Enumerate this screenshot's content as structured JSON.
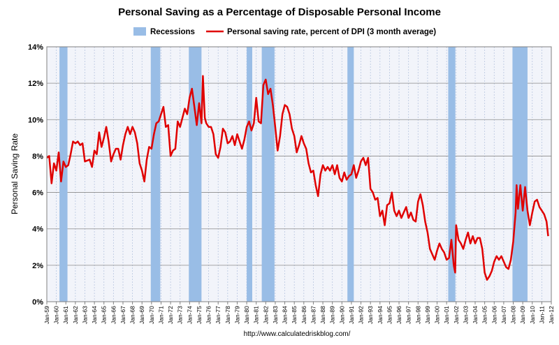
{
  "chart_data": {
    "type": "line",
    "title": "Personal Saving as a Percentage of Disposable Personal Income",
    "ylabel": "Personal Saving Rate",
    "xlabel": "",
    "footer": "http://www.calculatedriskblog.com/",
    "ylim": [
      0,
      14
    ],
    "xlim": [
      1959.0,
      2012.0
    ],
    "grid": true,
    "legend_position": "top",
    "y_ticks": [
      "0%",
      "2%",
      "4%",
      "6%",
      "8%",
      "10%",
      "12%",
      "14%"
    ],
    "x_ticks": [
      "Jan-59",
      "Jan-60",
      "Jan-61",
      "Jan-62",
      "Jan-63",
      "Jan-64",
      "Jan-65",
      "Jan-66",
      "Jan-67",
      "Jan-68",
      "Jan-69",
      "Jan-70",
      "Jan-71",
      "Jan-72",
      "Jan-73",
      "Jan-74",
      "Jan-75",
      "Jan-76",
      "Jan-77",
      "Jan-78",
      "Jan-79",
      "Jan-80",
      "Jan-81",
      "Jan-82",
      "Jan-83",
      "Jan-84",
      "Jan-85",
      "Jan-86",
      "Jan-87",
      "Jan-88",
      "Jan-89",
      "Jan-90",
      "Jan-91",
      "Jan-92",
      "Jan-93",
      "Jan-94",
      "Jan-95",
      "Jan-96",
      "Jan-97",
      "Jan-98",
      "Jan-99",
      "Jan-00",
      "Jan-01",
      "Jan-02",
      "Jan-03",
      "Jan-04",
      "Jan-05",
      "Jan-06",
      "Jan-07",
      "Jan-08",
      "Jan-09",
      "Jan-10",
      "Jan-11",
      "Jan-12"
    ],
    "recessions": {
      "name": "Recessions",
      "color": "#99bde6",
      "periods": [
        [
          1960.33,
          1961.17
        ],
        [
          1969.92,
          1970.92
        ],
        [
          1973.92,
          1975.25
        ],
        [
          1980.0,
          1980.58
        ],
        [
          1981.58,
          1982.92
        ],
        [
          1990.58,
          1991.25
        ],
        [
          2001.17,
          2001.92
        ],
        [
          2007.92,
          2009.5
        ]
      ]
    },
    "series": [
      {
        "name": "Personal saving rate, percent of DPI (3 month average)",
        "color": "#e00000",
        "points": [
          [
            1959.0,
            7.9
          ],
          [
            1959.25,
            8.0
          ],
          [
            1959.5,
            6.5
          ],
          [
            1959.75,
            7.6
          ],
          [
            1960.0,
            7.2
          ],
          [
            1960.25,
            8.2
          ],
          [
            1960.5,
            6.6
          ],
          [
            1960.75,
            7.7
          ],
          [
            1961.0,
            7.4
          ],
          [
            1961.25,
            7.5
          ],
          [
            1961.5,
            8.1
          ],
          [
            1961.75,
            8.8
          ],
          [
            1962.0,
            8.7
          ],
          [
            1962.25,
            8.8
          ],
          [
            1962.5,
            8.6
          ],
          [
            1962.75,
            8.7
          ],
          [
            1963.0,
            7.7
          ],
          [
            1963.5,
            7.8
          ],
          [
            1963.75,
            7.4
          ],
          [
            1964.0,
            8.3
          ],
          [
            1964.25,
            8.1
          ],
          [
            1964.5,
            9.3
          ],
          [
            1964.75,
            8.5
          ],
          [
            1965.0,
            9.0
          ],
          [
            1965.25,
            9.6
          ],
          [
            1965.5,
            8.8
          ],
          [
            1965.75,
            7.7
          ],
          [
            1966.0,
            8.1
          ],
          [
            1966.25,
            8.4
          ],
          [
            1966.5,
            8.4
          ],
          [
            1966.75,
            7.8
          ],
          [
            1967.0,
            8.6
          ],
          [
            1967.25,
            9.2
          ],
          [
            1967.5,
            9.6
          ],
          [
            1967.75,
            9.2
          ],
          [
            1968.0,
            9.6
          ],
          [
            1968.25,
            9.3
          ],
          [
            1968.5,
            8.7
          ],
          [
            1968.75,
            7.6
          ],
          [
            1969.0,
            7.2
          ],
          [
            1969.25,
            6.6
          ],
          [
            1969.5,
            7.8
          ],
          [
            1969.75,
            8.5
          ],
          [
            1970.0,
            8.4
          ],
          [
            1970.25,
            9.2
          ],
          [
            1970.5,
            9.8
          ],
          [
            1970.75,
            9.9
          ],
          [
            1971.0,
            10.3
          ],
          [
            1971.25,
            10.7
          ],
          [
            1971.5,
            9.6
          ],
          [
            1971.75,
            9.7
          ],
          [
            1972.0,
            8.0
          ],
          [
            1972.25,
            8.3
          ],
          [
            1972.5,
            8.4
          ],
          [
            1972.75,
            9.9
          ],
          [
            1973.0,
            9.6
          ],
          [
            1973.25,
            10.1
          ],
          [
            1973.5,
            10.6
          ],
          [
            1973.75,
            10.3
          ],
          [
            1974.0,
            11.2
          ],
          [
            1974.25,
            11.7
          ],
          [
            1974.5,
            10.7
          ],
          [
            1974.75,
            9.7
          ],
          [
            1975.0,
            10.9
          ],
          [
            1975.25,
            9.8
          ],
          [
            1975.4,
            12.4
          ],
          [
            1975.6,
            10.1
          ],
          [
            1975.75,
            9.8
          ],
          [
            1976.0,
            9.6
          ],
          [
            1976.25,
            9.6
          ],
          [
            1976.5,
            9.2
          ],
          [
            1976.75,
            8.1
          ],
          [
            1977.0,
            7.9
          ],
          [
            1977.25,
            8.5
          ],
          [
            1977.5,
            9.5
          ],
          [
            1977.75,
            9.3
          ],
          [
            1978.0,
            8.7
          ],
          [
            1978.25,
            8.8
          ],
          [
            1978.5,
            9.1
          ],
          [
            1978.75,
            8.6
          ],
          [
            1979.0,
            9.2
          ],
          [
            1979.25,
            8.8
          ],
          [
            1979.5,
            8.4
          ],
          [
            1979.75,
            8.9
          ],
          [
            1980.0,
            9.6
          ],
          [
            1980.25,
            9.9
          ],
          [
            1980.5,
            9.4
          ],
          [
            1980.75,
            9.8
          ],
          [
            1981.0,
            11.2
          ],
          [
            1981.25,
            9.9
          ],
          [
            1981.5,
            9.8
          ],
          [
            1981.75,
            11.9
          ],
          [
            1982.0,
            12.2
          ],
          [
            1982.25,
            11.4
          ],
          [
            1982.5,
            11.7
          ],
          [
            1982.75,
            10.8
          ],
          [
            1983.0,
            9.6
          ],
          [
            1983.25,
            8.3
          ],
          [
            1983.5,
            9.1
          ],
          [
            1983.75,
            10.3
          ],
          [
            1984.0,
            10.8
          ],
          [
            1984.25,
            10.7
          ],
          [
            1984.5,
            10.3
          ],
          [
            1984.75,
            9.5
          ],
          [
            1985.0,
            9.1
          ],
          [
            1985.25,
            8.2
          ],
          [
            1985.5,
            8.6
          ],
          [
            1985.75,
            9.1
          ],
          [
            1986.0,
            8.7
          ],
          [
            1986.25,
            8.4
          ],
          [
            1986.5,
            7.6
          ],
          [
            1986.75,
            7.1
          ],
          [
            1987.0,
            7.2
          ],
          [
            1987.25,
            6.4
          ],
          [
            1987.5,
            5.8
          ],
          [
            1987.75,
            7.0
          ],
          [
            1988.0,
            7.5
          ],
          [
            1988.25,
            7.2
          ],
          [
            1988.5,
            7.4
          ],
          [
            1988.75,
            7.2
          ],
          [
            1989.0,
            7.5
          ],
          [
            1989.25,
            7.0
          ],
          [
            1989.5,
            7.5
          ],
          [
            1989.75,
            6.8
          ],
          [
            1990.0,
            6.6
          ],
          [
            1990.25,
            7.1
          ],
          [
            1990.5,
            6.7
          ],
          [
            1990.75,
            6.9
          ],
          [
            1991.0,
            7.0
          ],
          [
            1991.25,
            7.5
          ],
          [
            1991.5,
            6.8
          ],
          [
            1991.75,
            7.2
          ],
          [
            1992.0,
            7.7
          ],
          [
            1992.25,
            7.9
          ],
          [
            1992.5,
            7.5
          ],
          [
            1992.75,
            7.9
          ],
          [
            1993.0,
            6.2
          ],
          [
            1993.25,
            6.0
          ],
          [
            1993.5,
            5.6
          ],
          [
            1993.75,
            5.7
          ],
          [
            1994.0,
            4.7
          ],
          [
            1994.25,
            5.0
          ],
          [
            1994.5,
            4.2
          ],
          [
            1994.75,
            5.3
          ],
          [
            1995.0,
            5.4
          ],
          [
            1995.25,
            6.0
          ],
          [
            1995.5,
            5.0
          ],
          [
            1995.75,
            4.7
          ],
          [
            1996.0,
            5.0
          ],
          [
            1996.25,
            4.6
          ],
          [
            1996.5,
            4.9
          ],
          [
            1996.75,
            5.2
          ],
          [
            1997.0,
            4.6
          ],
          [
            1997.25,
            4.9
          ],
          [
            1997.5,
            4.5
          ],
          [
            1997.75,
            4.4
          ],
          [
            1998.0,
            5.5
          ],
          [
            1998.25,
            5.9
          ],
          [
            1998.5,
            5.3
          ],
          [
            1998.75,
            4.4
          ],
          [
            1999.0,
            3.8
          ],
          [
            1999.25,
            2.9
          ],
          [
            1999.5,
            2.6
          ],
          [
            1999.75,
            2.3
          ],
          [
            2000.0,
            2.8
          ],
          [
            2000.25,
            3.2
          ],
          [
            2000.5,
            2.9
          ],
          [
            2000.75,
            2.7
          ],
          [
            2001.0,
            2.3
          ],
          [
            2001.25,
            2.4
          ],
          [
            2001.5,
            3.4
          ],
          [
            2001.75,
            2.0
          ],
          [
            2001.9,
            1.6
          ],
          [
            2002.0,
            4.2
          ],
          [
            2002.25,
            3.4
          ],
          [
            2002.5,
            3.2
          ],
          [
            2002.75,
            2.9
          ],
          [
            2003.0,
            3.4
          ],
          [
            2003.25,
            3.8
          ],
          [
            2003.5,
            3.2
          ],
          [
            2003.75,
            3.6
          ],
          [
            2004.0,
            3.2
          ],
          [
            2004.25,
            3.5
          ],
          [
            2004.5,
            3.5
          ],
          [
            2004.75,
            2.9
          ],
          [
            2005.0,
            1.6
          ],
          [
            2005.25,
            1.2
          ],
          [
            2005.5,
            1.4
          ],
          [
            2005.75,
            1.7
          ],
          [
            2006.0,
            2.2
          ],
          [
            2006.25,
            2.5
          ],
          [
            2006.5,
            2.3
          ],
          [
            2006.75,
            2.5
          ],
          [
            2007.0,
            2.2
          ],
          [
            2007.25,
            1.9
          ],
          [
            2007.5,
            1.8
          ],
          [
            2007.75,
            2.3
          ],
          [
            2008.0,
            3.3
          ],
          [
            2008.25,
            4.9
          ],
          [
            2008.35,
            6.4
          ],
          [
            2008.5,
            5.1
          ],
          [
            2008.75,
            6.4
          ],
          [
            2009.0,
            5.0
          ],
          [
            2009.25,
            6.3
          ],
          [
            2009.5,
            5.0
          ],
          [
            2009.75,
            4.2
          ],
          [
            2010.0,
            4.9
          ],
          [
            2010.25,
            5.5
          ],
          [
            2010.5,
            5.6
          ],
          [
            2010.75,
            5.2
          ],
          [
            2011.0,
            5.0
          ],
          [
            2011.25,
            4.8
          ],
          [
            2011.5,
            4.4
          ],
          [
            2011.67,
            3.6
          ]
        ]
      }
    ]
  }
}
